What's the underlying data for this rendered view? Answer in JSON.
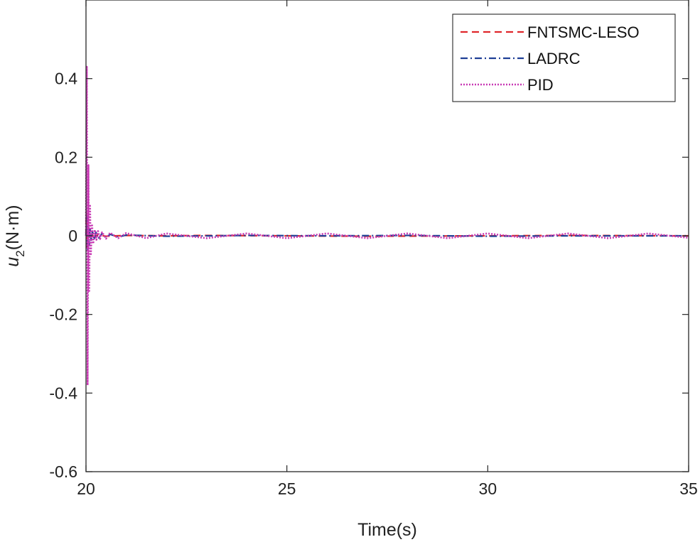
{
  "chart_data": {
    "type": "line",
    "title": "",
    "xlabel": "Time(s)",
    "ylabel": "u",
    "ylabel_sub": "2",
    "ylabel_unit": "(N·m)",
    "xlim": [
      20,
      35
    ],
    "ylim": [
      -0.6,
      0.6
    ],
    "xticks": [
      20,
      25,
      30,
      35
    ],
    "xtick_labels": [
      "20",
      "25",
      "30",
      "35"
    ],
    "yticks": [
      -0.6,
      -0.4,
      -0.2,
      0,
      0.2,
      0.4
    ],
    "ytick_labels": [
      "-0.6",
      "-0.4",
      "-0.2",
      "0",
      "0.2",
      "0.4"
    ],
    "grid": false,
    "legend_position": "top-right",
    "series": [
      {
        "name": "FNTSMC-LESO",
        "color": "#e0262b",
        "style": "dashed",
        "x": [
          20,
          20.01,
          20.02,
          20.03,
          20.04,
          20.05,
          20.06,
          20.08,
          20.1,
          20.15,
          20.2,
          20.3,
          20.5,
          21,
          22,
          23,
          25,
          27,
          30,
          32,
          35
        ],
        "y": [
          0,
          0.06,
          -0.03,
          0.04,
          -0.02,
          0.015,
          -0.01,
          0.006,
          -0.004,
          0.003,
          -0.002,
          0.002,
          -0.001,
          0.001,
          0,
          0.001,
          0,
          -0.001,
          0,
          0.001,
          0
        ]
      },
      {
        "name": "LADRC",
        "color": "#1f3f95",
        "style": "dashdot",
        "x": [
          20,
          20.02,
          20.04,
          20.06,
          20.08,
          20.1,
          20.13,
          20.16,
          20.2,
          20.25,
          20.3,
          20.4,
          20.5,
          20.6,
          20.8,
          21,
          22,
          24,
          26,
          28,
          30,
          32,
          35
        ],
        "y": [
          0,
          0.05,
          -0.04,
          0.03,
          -0.025,
          0.02,
          -0.015,
          0.012,
          -0.01,
          0.009,
          -0.008,
          0.006,
          -0.005,
          0.004,
          -0.003,
          0.002,
          -0.001,
          0.001,
          0,
          0.001,
          -0.001,
          0,
          0
        ]
      },
      {
        "name": "PID",
        "color": "#c839b4",
        "style": "dotted",
        "x": [
          20,
          20.02,
          20.04,
          20.06,
          20.08,
          20.1,
          20.12,
          20.15,
          20.18,
          20.22,
          20.26,
          20.3,
          20.35,
          20.4,
          20.5,
          20.6,
          20.8,
          21,
          21.5,
          22,
          23,
          24,
          25,
          26,
          27,
          28,
          29,
          30,
          31,
          32,
          33,
          34,
          35
        ],
        "y": [
          0,
          0.43,
          -0.38,
          0.18,
          -0.14,
          0.08,
          -0.05,
          0.03,
          -0.02,
          0.015,
          -0.01,
          0.012,
          -0.008,
          0.009,
          -0.007,
          0.008,
          -0.006,
          0.007,
          -0.006,
          0.006,
          -0.006,
          0.006,
          -0.006,
          0.006,
          -0.006,
          0.006,
          -0.006,
          0.006,
          -0.006,
          0.006,
          -0.006,
          0.006,
          -0.005
        ]
      }
    ]
  }
}
